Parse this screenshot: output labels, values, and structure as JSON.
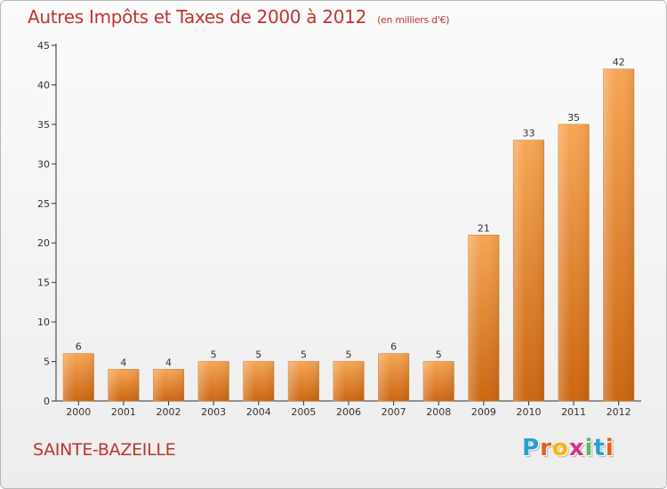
{
  "title": {
    "main": "Autres Impôts et Taxes de 2000 à 2012",
    "unit": "(en milliers d'€)"
  },
  "commune": "SAINTE-BAZEILLE",
  "logo": {
    "letters": [
      "P",
      "r",
      "o",
      "x",
      "i",
      "t",
      "i"
    ],
    "colors": [
      "#2a9fd6",
      "#e8601c",
      "#f2b705",
      "#d63384",
      "#5cb85c",
      "#2a9fd6",
      "#e8601c"
    ]
  },
  "colors": {
    "title": "#c0342e",
    "bar_top": "#f7a654",
    "bar_bottom": "#cc6611",
    "axis": "#333333",
    "grid": "#d8d8d8"
  },
  "chart_data": {
    "type": "bar",
    "categories": [
      "2000",
      "2001",
      "2002",
      "2003",
      "2004",
      "2005",
      "2006",
      "2007",
      "2008",
      "2009",
      "2010",
      "2011",
      "2012"
    ],
    "values": [
      6,
      4,
      4,
      5,
      5,
      5,
      5,
      6,
      5,
      21,
      33,
      35,
      42
    ],
    "ylim": [
      0,
      45
    ],
    "yticks": [
      0,
      5,
      10,
      15,
      20,
      25,
      30,
      35,
      40,
      45
    ],
    "grid": false,
    "xlabel": "",
    "ylabel": ""
  }
}
